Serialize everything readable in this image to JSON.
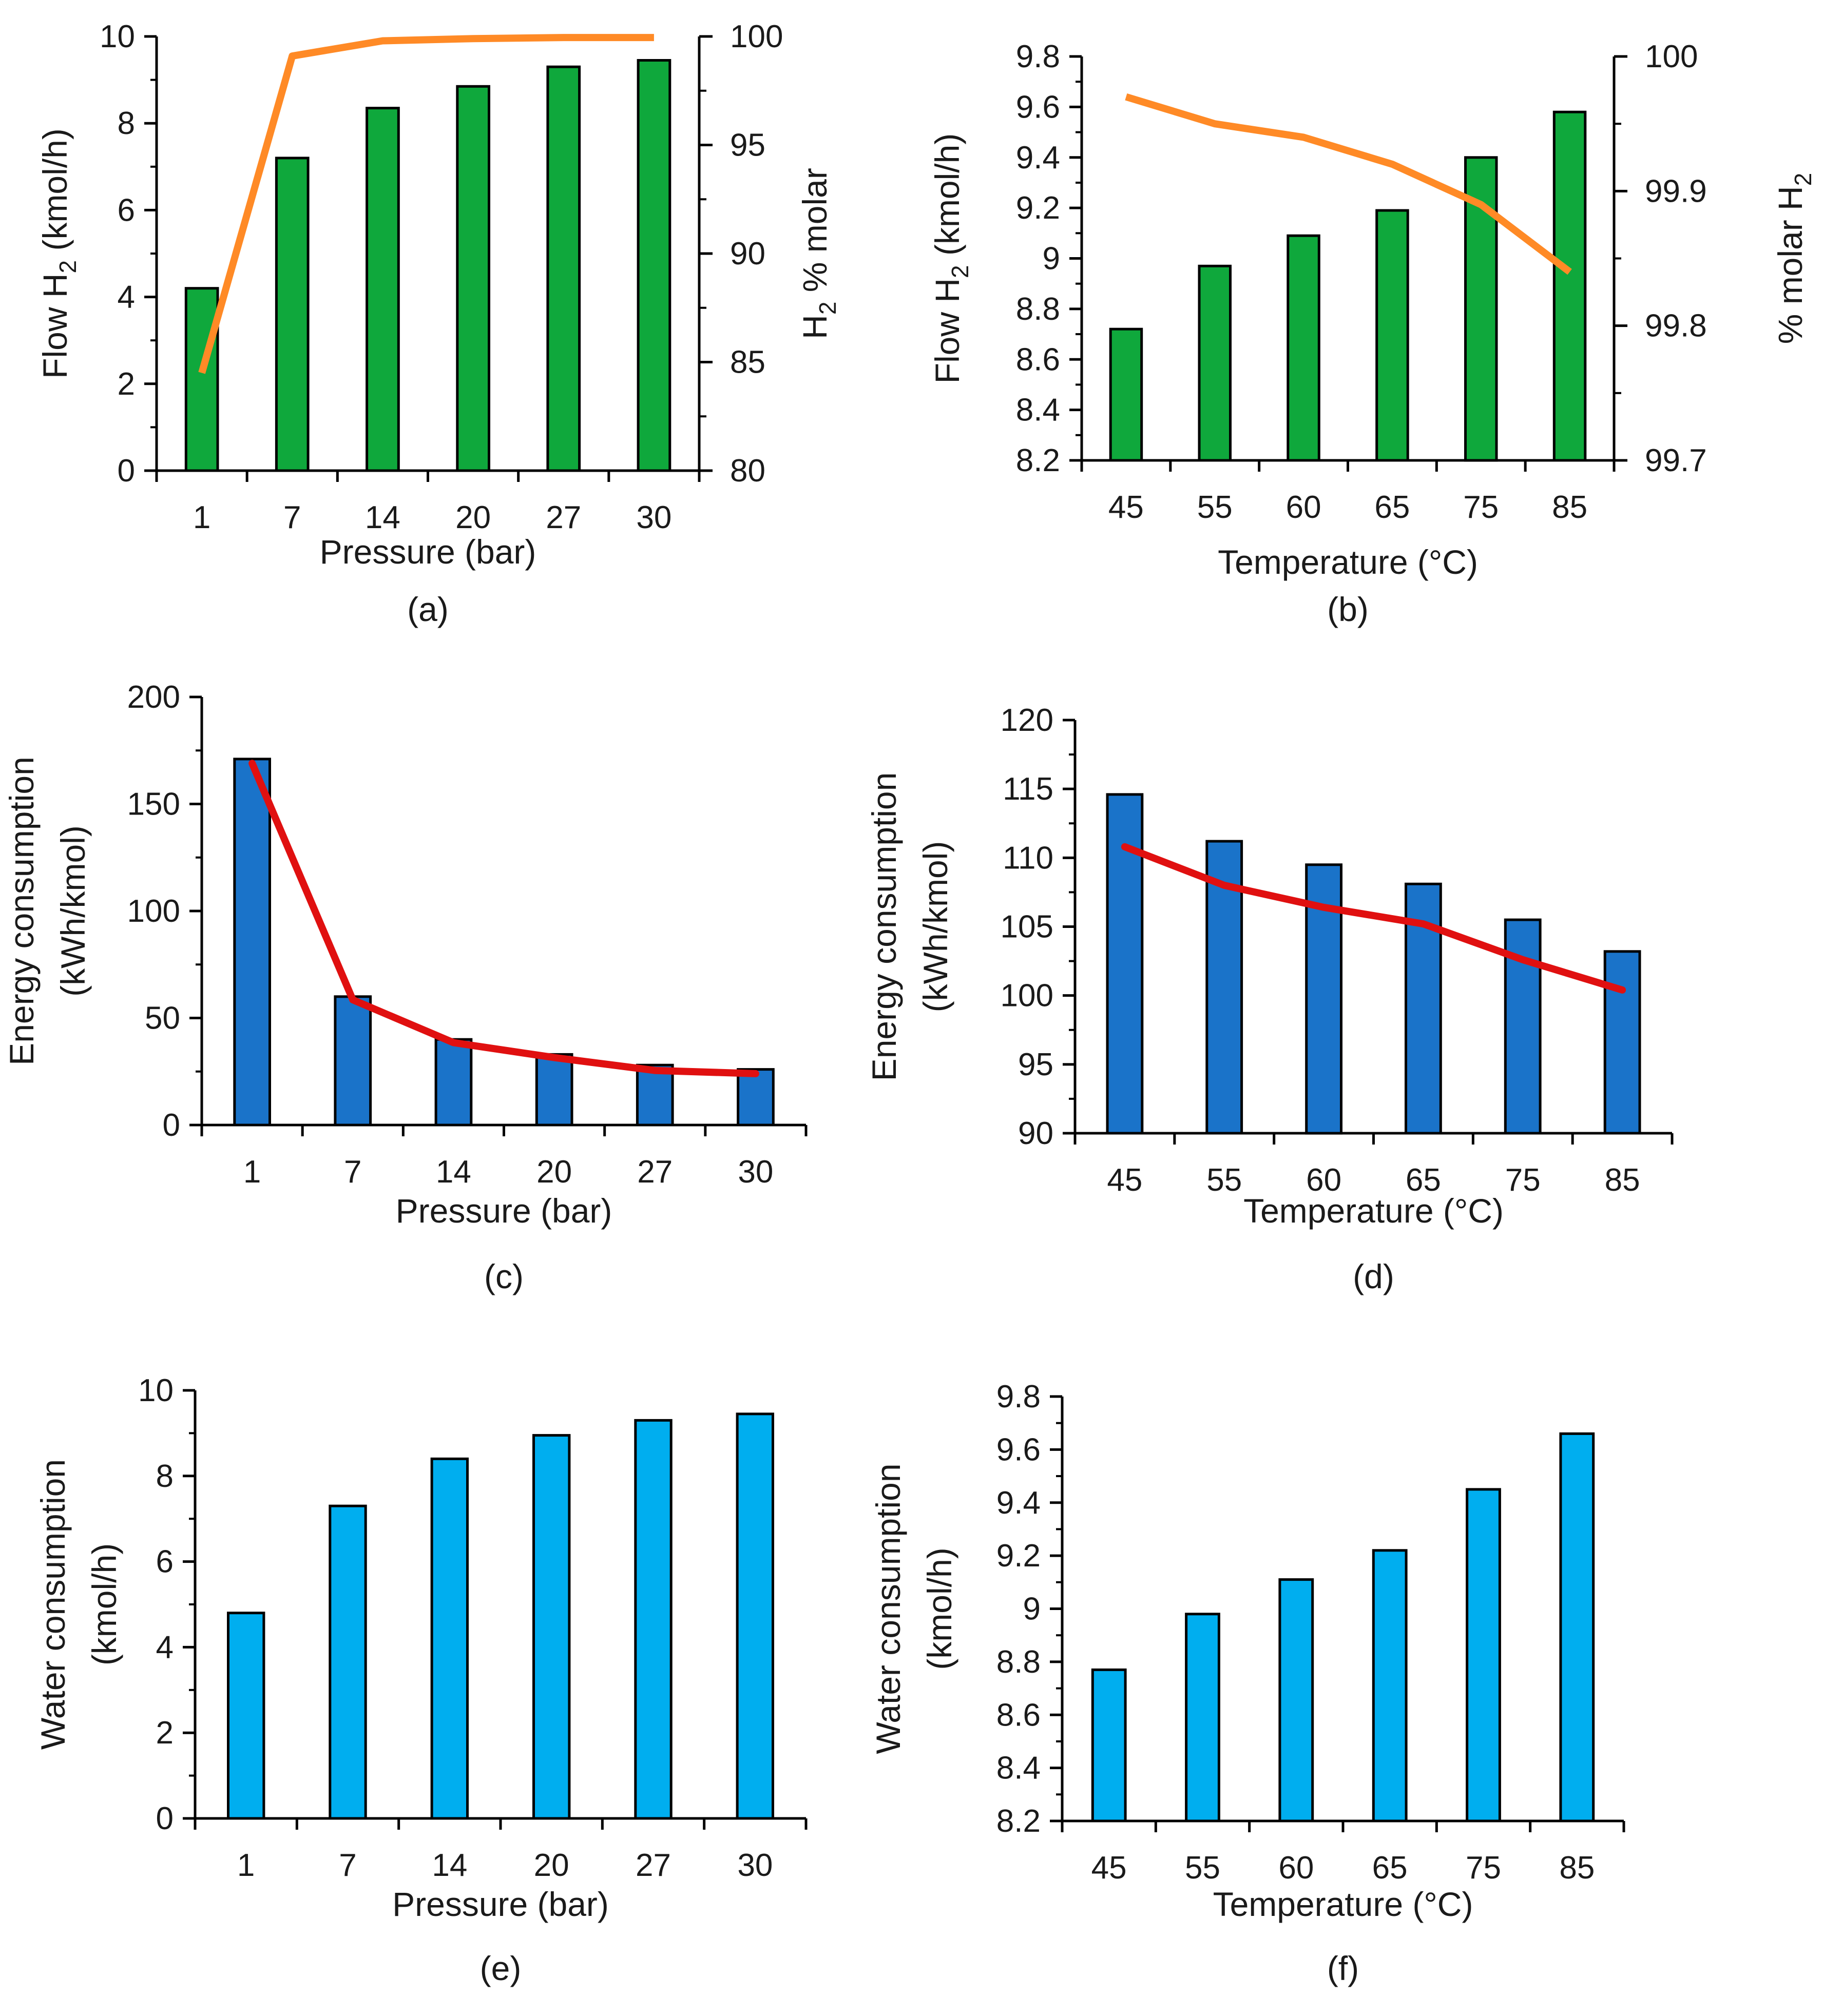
{
  "figure": {
    "colors": {
      "axis": "#000000",
      "text": "#1a1a1a",
      "green_bar": "#0fa83c",
      "orange_line": "#ff8a26",
      "blue_bar": "#1a73c9",
      "red_line": "#e01010",
      "cyan_bar": "#00aeef"
    }
  },
  "chart_data": [
    {
      "id": "a",
      "type": "bar",
      "caption": "(a)",
      "categories": [
        "1",
        "7",
        "14",
        "20",
        "27",
        "30"
      ],
      "xlabel": "Pressure (bar)",
      "ylabel": "Flow H2 (kmol/h)",
      "ylabel_parts": [
        "Flow H",
        "2",
        " (kmol/h)"
      ],
      "ylim": [
        0,
        10
      ],
      "yticks": [
        0,
        2,
        4,
        6,
        8,
        10
      ],
      "y_tick_labels": [
        "0",
        "2",
        "4",
        "6",
        "8",
        "10"
      ],
      "minor_step": 1,
      "bar_values": [
        4.2,
        7.2,
        8.35,
        8.85,
        9.3,
        9.45
      ],
      "bar_color": "#0fa83c",
      "line": {
        "values": [
          84.5,
          99.1,
          99.8,
          99.9,
          99.95,
          99.95
        ],
        "color": "#ff8a26",
        "axis": "right",
        "ylim": [
          80,
          100
        ],
        "yticks": [
          80,
          85,
          90,
          95,
          100
        ],
        "y_tick_labels": [
          "80",
          "85",
          "90",
          "95",
          "100"
        ],
        "ylabel": "H2 % molar",
        "ylabel_parts": [
          "H",
          "2",
          " % molar"
        ]
      }
    },
    {
      "id": "b",
      "type": "bar",
      "caption": "(b)",
      "categories": [
        "45",
        "55",
        "60",
        "65",
        "75",
        "85"
      ],
      "xlabel": "Temperature (°C)",
      "ylabel": "Flow H2 (kmol/h)",
      "ylabel_parts": [
        "Flow H",
        "2",
        " (kmol/h)"
      ],
      "ylim": [
        8.2,
        9.8
      ],
      "yticks": [
        8.2,
        8.4,
        8.6,
        8.8,
        9.0,
        9.2,
        9.4,
        9.6,
        9.8
      ],
      "y_tick_labels": [
        "8.2",
        "8.4",
        "8.6",
        "8.8",
        "9",
        "9.2",
        "9.4",
        "9.6",
        "9.8"
      ],
      "minor_step": 0.1,
      "bar_values": [
        8.72,
        8.97,
        9.09,
        9.19,
        9.4,
        9.58
      ],
      "bar_color": "#0fa83c",
      "line": {
        "values": [
          99.97,
          99.95,
          99.94,
          99.92,
          99.89,
          99.84
        ],
        "color": "#ff8a26",
        "axis": "right",
        "ylim": [
          99.7,
          100
        ],
        "yticks": [
          99.7,
          99.8,
          99.9,
          100
        ],
        "y_tick_labels": [
          "99.7",
          "99.8",
          "99.9",
          "100"
        ],
        "ylabel": "% molar H2",
        "ylabel_parts": [
          "% molar H",
          "2",
          ""
        ]
      }
    },
    {
      "id": "c",
      "type": "bar",
      "caption": "(c)",
      "categories": [
        "1",
        "7",
        "14",
        "20",
        "27",
        "30"
      ],
      "xlabel": "Pressure (bar)",
      "ylabel_lines": [
        "Energy consumption",
        "(kWh/kmol)"
      ],
      "ylim": [
        0,
        200
      ],
      "yticks": [
        0,
        50,
        100,
        150,
        200
      ],
      "y_tick_labels": [
        "0",
        "50",
        "100",
        "150",
        "200"
      ],
      "minor_step": 25,
      "bar_values": [
        171,
        60,
        40,
        33,
        28,
        26
      ],
      "bar_color": "#1a73c9",
      "line": {
        "values": [
          169,
          58.5,
          38.5,
          31.5,
          25.5,
          24
        ],
        "color": "#e01010",
        "axis": "left"
      }
    },
    {
      "id": "d",
      "type": "bar",
      "caption": "(d)",
      "categories": [
        "45",
        "55",
        "60",
        "65",
        "75",
        "85"
      ],
      "xlabel": "Temperature (°C)",
      "ylabel_lines": [
        "Energy consumption",
        "(kWh/kmol)"
      ],
      "ylim": [
        90,
        120
      ],
      "yticks": [
        90,
        95,
        100,
        105,
        110,
        115,
        120
      ],
      "y_tick_labels": [
        "90",
        "95",
        "100",
        "105",
        "110",
        "115",
        "120"
      ],
      "minor_step": 2.5,
      "bar_values": [
        114.6,
        111.2,
        109.5,
        108.1,
        105.5,
        103.2
      ],
      "bar_color": "#1a73c9",
      "line": {
        "values": [
          110.8,
          108.0,
          106.4,
          105.2,
          102.6,
          100.4
        ],
        "color": "#e01010",
        "axis": "left"
      }
    },
    {
      "id": "e",
      "type": "bar",
      "caption": "(e)",
      "categories": [
        "1",
        "7",
        "14",
        "20",
        "27",
        "30"
      ],
      "xlabel": "Pressure (bar)",
      "ylabel_lines": [
        "Water consumption",
        "(kmol/h)"
      ],
      "ylim": [
        0,
        10
      ],
      "yticks": [
        0,
        2,
        4,
        6,
        8,
        10
      ],
      "y_tick_labels": [
        "0",
        "2",
        "4",
        "6",
        "8",
        "10"
      ],
      "minor_step": 1,
      "bar_values": [
        4.8,
        7.3,
        8.4,
        8.95,
        9.3,
        9.45
      ],
      "bar_color": "#00aeef"
    },
    {
      "id": "f",
      "type": "bar",
      "caption": "(f)",
      "categories": [
        "45",
        "55",
        "60",
        "65",
        "75",
        "85"
      ],
      "xlabel": "Temperature (°C)",
      "ylabel_lines": [
        "Water consumption",
        "(kmol/h)"
      ],
      "ylim": [
        8.2,
        9.8
      ],
      "yticks": [
        8.2,
        8.4,
        8.6,
        8.8,
        9.0,
        9.2,
        9.4,
        9.6,
        9.8
      ],
      "y_tick_labels": [
        "8.2",
        "8.4",
        "8.6",
        "8.8",
        "9",
        "9.2",
        "9.4",
        "9.6",
        "9.8"
      ],
      "minor_step": 0.1,
      "bar_values": [
        8.77,
        8.98,
        9.11,
        9.22,
        9.45,
        9.66
      ],
      "bar_color": "#00aeef"
    }
  ]
}
